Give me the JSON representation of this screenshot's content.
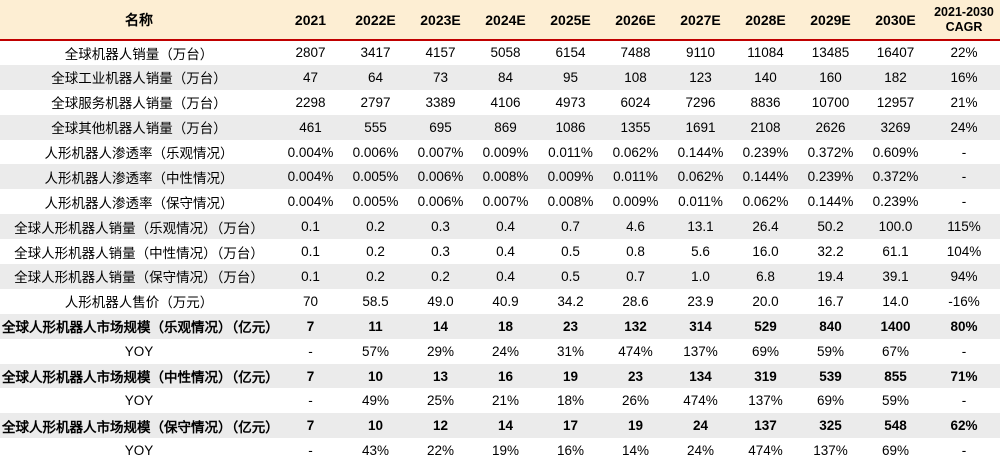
{
  "colors": {
    "header_bg": "#fdeed3",
    "divider_red": "#c00000",
    "stripe_gray": "#ebebeb",
    "text": "#000000"
  },
  "chart_data": {
    "type": "table",
    "name_header": "名称",
    "year_headers": [
      "2021",
      "2022E",
      "2023E",
      "2024E",
      "2025E",
      "2026E",
      "2027E",
      "2028E",
      "2029E",
      "2030E"
    ],
    "cagr_header_line1": "2021-2030",
    "cagr_header_line2": "CAGR",
    "rows": [
      {
        "label": "全球机器人销量（万台）",
        "values": [
          "2807",
          "3417",
          "4157",
          "5058",
          "6154",
          "7488",
          "9110",
          "11084",
          "13485",
          "16407"
        ],
        "cagr": "22%",
        "bold": false
      },
      {
        "label": "全球工业机器人销量（万台）",
        "values": [
          "47",
          "64",
          "73",
          "84",
          "95",
          "108",
          "123",
          "140",
          "160",
          "182"
        ],
        "cagr": "16%",
        "bold": false
      },
      {
        "label": "全球服务机器人销量（万台）",
        "values": [
          "2298",
          "2797",
          "3389",
          "4106",
          "4973",
          "6024",
          "7296",
          "8836",
          "10700",
          "12957"
        ],
        "cagr": "21%",
        "bold": false
      },
      {
        "label": "全球其他机器人销量（万台）",
        "values": [
          "461",
          "555",
          "695",
          "869",
          "1086",
          "1355",
          "1691",
          "2108",
          "2626",
          "3269"
        ],
        "cagr": "24%",
        "bold": false
      },
      {
        "label": "人形机器人渗透率（乐观情况）",
        "values": [
          "0.004%",
          "0.006%",
          "0.007%",
          "0.009%",
          "0.011%",
          "0.062%",
          "0.144%",
          "0.239%",
          "0.372%",
          "0.609%"
        ],
        "cagr": "-",
        "bold": false
      },
      {
        "label": "人形机器人渗透率（中性情况）",
        "values": [
          "0.004%",
          "0.005%",
          "0.006%",
          "0.008%",
          "0.009%",
          "0.011%",
          "0.062%",
          "0.144%",
          "0.239%",
          "0.372%"
        ],
        "cagr": "-",
        "bold": false
      },
      {
        "label": "人形机器人渗透率（保守情况）",
        "values": [
          "0.004%",
          "0.005%",
          "0.006%",
          "0.007%",
          "0.008%",
          "0.009%",
          "0.011%",
          "0.062%",
          "0.144%",
          "0.239%"
        ],
        "cagr": "-",
        "bold": false
      },
      {
        "label": "全球人形机器人销量（乐观情况）（万台）",
        "values": [
          "0.1",
          "0.2",
          "0.3",
          "0.4",
          "0.7",
          "4.6",
          "13.1",
          "26.4",
          "50.2",
          "100.0"
        ],
        "cagr": "115%",
        "bold": false
      },
      {
        "label": "全球人形机器人销量（中性情况）（万台）",
        "values": [
          "0.1",
          "0.2",
          "0.3",
          "0.4",
          "0.5",
          "0.8",
          "5.6",
          "16.0",
          "32.2",
          "61.1"
        ],
        "cagr": "104%",
        "bold": false
      },
      {
        "label": "全球人形机器人销量（保守情况）（万台）",
        "values": [
          "0.1",
          "0.2",
          "0.2",
          "0.4",
          "0.5",
          "0.7",
          "1.0",
          "6.8",
          "19.4",
          "39.1"
        ],
        "cagr": "94%",
        "bold": false
      },
      {
        "label": "人形机器人售价（万元）",
        "values": [
          "70",
          "58.5",
          "49.0",
          "40.9",
          "34.2",
          "28.6",
          "23.9",
          "20.0",
          "16.7",
          "14.0"
        ],
        "cagr": "-16%",
        "bold": false
      },
      {
        "label": "全球人形机器人市场规模（乐观情况）（亿元）",
        "values": [
          "7",
          "11",
          "14",
          "18",
          "23",
          "132",
          "314",
          "529",
          "840",
          "1400"
        ],
        "cagr": "80%",
        "bold": true
      },
      {
        "label": "YOY",
        "values": [
          "-",
          "57%",
          "29%",
          "24%",
          "31%",
          "474%",
          "137%",
          "69%",
          "59%",
          "67%"
        ],
        "cagr": "-",
        "bold": false
      },
      {
        "label": "全球人形机器人市场规模（中性情况）（亿元）",
        "values": [
          "7",
          "10",
          "13",
          "16",
          "19",
          "23",
          "134",
          "319",
          "539",
          "855"
        ],
        "cagr": "71%",
        "bold": true
      },
      {
        "label": "YOY",
        "values": [
          "-",
          "49%",
          "25%",
          "21%",
          "18%",
          "26%",
          "474%",
          "137%",
          "69%",
          "59%"
        ],
        "cagr": "-",
        "bold": false
      },
      {
        "label": "全球人形机器人市场规模（保守情况）（亿元）",
        "values": [
          "7",
          "10",
          "12",
          "14",
          "17",
          "19",
          "24",
          "137",
          "325",
          "548"
        ],
        "cagr": "62%",
        "bold": true
      },
      {
        "label": "YOY",
        "values": [
          "-",
          "43%",
          "22%",
          "19%",
          "16%",
          "14%",
          "24%",
          "474%",
          "137%",
          "69%"
        ],
        "cagr": "-",
        "bold": false
      }
    ]
  }
}
